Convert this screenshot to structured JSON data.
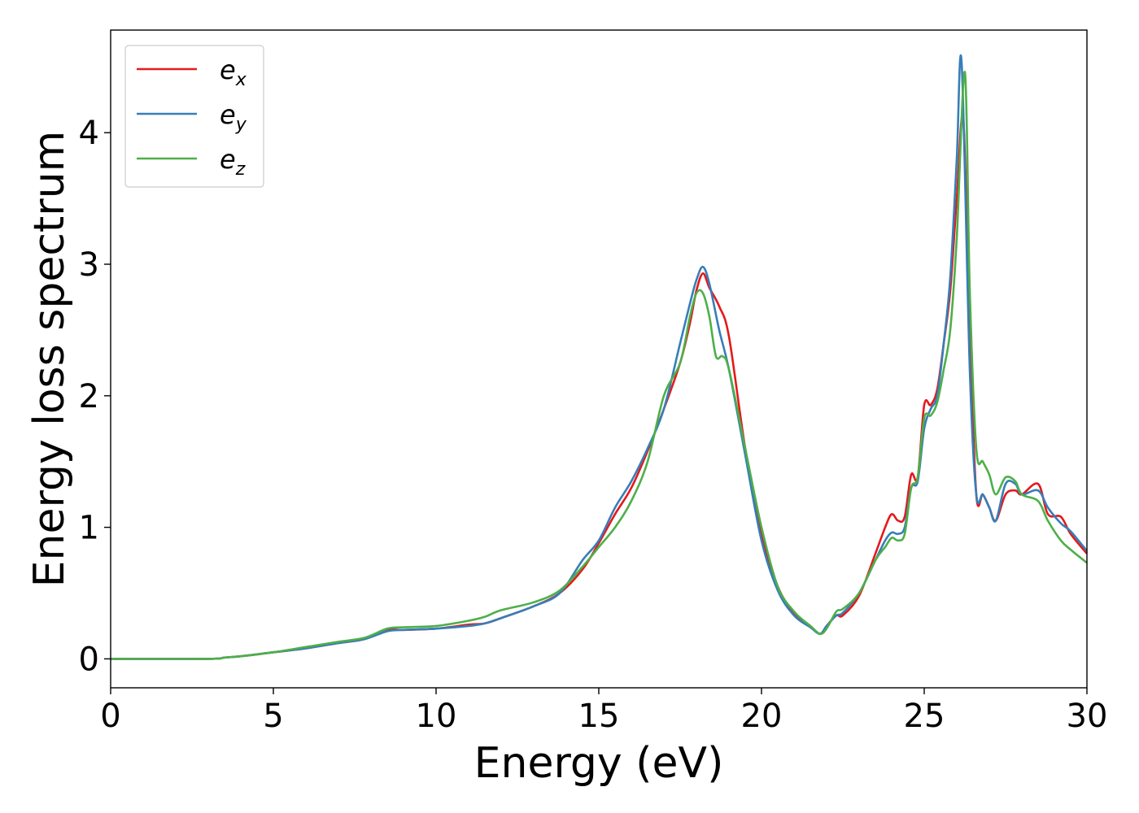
{
  "chart_data": {
    "type": "line",
    "xlabel": "Energy (eV)",
    "ylabel": "Energy loss spectrum",
    "xlim": [
      0,
      30
    ],
    "ylim": [
      -0.22,
      4.78
    ],
    "xticks": [
      0,
      5,
      10,
      15,
      20,
      25,
      30
    ],
    "yticks": [
      0,
      1,
      2,
      3,
      4
    ],
    "xtick_labels": [
      "0",
      "5",
      "10",
      "15",
      "20",
      "25",
      "30"
    ],
    "ytick_labels": [
      "0",
      "1",
      "2",
      "3",
      "4"
    ],
    "grid": false,
    "legend_position": "top-left",
    "series": [
      {
        "name": "e_x",
        "label_base": "e",
        "label_sub": "x",
        "color": "#e41a1c",
        "points": [
          [
            0,
            0
          ],
          [
            3,
            0
          ],
          [
            3.5,
            0.01
          ],
          [
            4,
            0.02
          ],
          [
            5,
            0.05
          ],
          [
            6,
            0.08
          ],
          [
            7,
            0.12
          ],
          [
            7.8,
            0.15
          ],
          [
            8.5,
            0.22
          ],
          [
            9,
            0.22
          ],
          [
            10,
            0.23
          ],
          [
            11,
            0.26
          ],
          [
            11.5,
            0.27
          ],
          [
            12,
            0.31
          ],
          [
            13,
            0.4
          ],
          [
            13.8,
            0.5
          ],
          [
            14.5,
            0.68
          ],
          [
            15,
            0.88
          ],
          [
            15.5,
            1.1
          ],
          [
            16,
            1.3
          ],
          [
            16.5,
            1.58
          ],
          [
            17,
            1.9
          ],
          [
            17.5,
            2.25
          ],
          [
            17.8,
            2.55
          ],
          [
            18,
            2.8
          ],
          [
            18.2,
            2.93
          ],
          [
            18.4,
            2.82
          ],
          [
            18.7,
            2.68
          ],
          [
            19,
            2.45
          ],
          [
            19.5,
            1.6
          ],
          [
            20,
            0.95
          ],
          [
            20.5,
            0.55
          ],
          [
            21,
            0.35
          ],
          [
            21.5,
            0.25
          ],
          [
            21.8,
            0.19
          ],
          [
            22,
            0.25
          ],
          [
            22.3,
            0.33
          ],
          [
            22.5,
            0.33
          ],
          [
            23,
            0.48
          ],
          [
            23.5,
            0.8
          ],
          [
            23.8,
            1.0
          ],
          [
            24,
            1.1
          ],
          [
            24.2,
            1.05
          ],
          [
            24.4,
            1.08
          ],
          [
            24.6,
            1.4
          ],
          [
            24.8,
            1.38
          ],
          [
            25,
            1.93
          ],
          [
            25.2,
            1.93
          ],
          [
            25.4,
            2.05
          ],
          [
            25.6,
            2.4
          ],
          [
            25.8,
            2.8
          ],
          [
            26,
            3.5
          ],
          [
            26.2,
            4.1
          ],
          [
            26.4,
            2.5
          ],
          [
            26.6,
            1.25
          ],
          [
            26.8,
            1.25
          ],
          [
            27,
            1.15
          ],
          [
            27.2,
            1.05
          ],
          [
            27.5,
            1.25
          ],
          [
            27.8,
            1.28
          ],
          [
            28,
            1.25
          ],
          [
            28.5,
            1.33
          ],
          [
            28.8,
            1.1
          ],
          [
            29.2,
            1.08
          ],
          [
            29.5,
            0.95
          ],
          [
            30,
            0.8
          ]
        ]
      },
      {
        "name": "e_y",
        "label_base": "e",
        "label_sub": "y",
        "color": "#377eb8",
        "points": [
          [
            0,
            0
          ],
          [
            3,
            0
          ],
          [
            3.5,
            0.01
          ],
          [
            4,
            0.02
          ],
          [
            5,
            0.05
          ],
          [
            6,
            0.08
          ],
          [
            7,
            0.12
          ],
          [
            7.8,
            0.15
          ],
          [
            8.5,
            0.21
          ],
          [
            9,
            0.22
          ],
          [
            10,
            0.23
          ],
          [
            11,
            0.25
          ],
          [
            11.5,
            0.27
          ],
          [
            12,
            0.31
          ],
          [
            13,
            0.4
          ],
          [
            13.8,
            0.5
          ],
          [
            14.5,
            0.75
          ],
          [
            15,
            0.9
          ],
          [
            15.5,
            1.15
          ],
          [
            16,
            1.35
          ],
          [
            16.5,
            1.6
          ],
          [
            17,
            1.9
          ],
          [
            17.5,
            2.4
          ],
          [
            17.8,
            2.7
          ],
          [
            18,
            2.88
          ],
          [
            18.2,
            2.98
          ],
          [
            18.4,
            2.85
          ],
          [
            18.7,
            2.5
          ],
          [
            19,
            2.2
          ],
          [
            19.5,
            1.55
          ],
          [
            20,
            0.9
          ],
          [
            20.5,
            0.52
          ],
          [
            21,
            0.33
          ],
          [
            21.5,
            0.24
          ],
          [
            21.8,
            0.19
          ],
          [
            22,
            0.25
          ],
          [
            22.3,
            0.33
          ],
          [
            22.5,
            0.35
          ],
          [
            23,
            0.5
          ],
          [
            23.5,
            0.75
          ],
          [
            23.8,
            0.9
          ],
          [
            24,
            0.96
          ],
          [
            24.2,
            0.95
          ],
          [
            24.4,
            1.0
          ],
          [
            24.6,
            1.3
          ],
          [
            24.8,
            1.35
          ],
          [
            25,
            1.75
          ],
          [
            25.2,
            1.9
          ],
          [
            25.4,
            2.0
          ],
          [
            25.6,
            2.4
          ],
          [
            25.8,
            2.9
          ],
          [
            26,
            3.8
          ],
          [
            26.15,
            4.53
          ],
          [
            26.4,
            2.2
          ],
          [
            26.6,
            1.25
          ],
          [
            26.8,
            1.25
          ],
          [
            27,
            1.15
          ],
          [
            27.2,
            1.05
          ],
          [
            27.5,
            1.33
          ],
          [
            27.8,
            1.33
          ],
          [
            28,
            1.25
          ],
          [
            28.5,
            1.28
          ],
          [
            28.8,
            1.15
          ],
          [
            29.2,
            1.03
          ],
          [
            29.5,
            0.97
          ],
          [
            30,
            0.82
          ]
        ]
      },
      {
        "name": "e_z",
        "label_base": "e",
        "label_sub": "z",
        "color": "#4daf4a",
        "points": [
          [
            0,
            0
          ],
          [
            3,
            0
          ],
          [
            3.5,
            0.01
          ],
          [
            4,
            0.02
          ],
          [
            5,
            0.05
          ],
          [
            6,
            0.09
          ],
          [
            7,
            0.13
          ],
          [
            7.8,
            0.16
          ],
          [
            8.5,
            0.23
          ],
          [
            9,
            0.24
          ],
          [
            10,
            0.25
          ],
          [
            11,
            0.29
          ],
          [
            11.5,
            0.32
          ],
          [
            12,
            0.37
          ],
          [
            13,
            0.43
          ],
          [
            13.8,
            0.52
          ],
          [
            14.5,
            0.7
          ],
          [
            15,
            0.85
          ],
          [
            15.5,
            1.0
          ],
          [
            16,
            1.2
          ],
          [
            16.5,
            1.5
          ],
          [
            17,
            2.0
          ],
          [
            17.5,
            2.25
          ],
          [
            17.8,
            2.6
          ],
          [
            18,
            2.78
          ],
          [
            18.2,
            2.78
          ],
          [
            18.4,
            2.6
          ],
          [
            18.6,
            2.3
          ],
          [
            18.8,
            2.3
          ],
          [
            19,
            2.2
          ],
          [
            19.5,
            1.6
          ],
          [
            20,
            1.0
          ],
          [
            20.5,
            0.55
          ],
          [
            21,
            0.36
          ],
          [
            21.5,
            0.25
          ],
          [
            21.8,
            0.19
          ],
          [
            22,
            0.23
          ],
          [
            22.3,
            0.36
          ],
          [
            22.5,
            0.38
          ],
          [
            23,
            0.5
          ],
          [
            23.5,
            0.75
          ],
          [
            23.8,
            0.85
          ],
          [
            24,
            0.92
          ],
          [
            24.2,
            0.9
          ],
          [
            24.4,
            0.95
          ],
          [
            24.6,
            1.3
          ],
          [
            24.8,
            1.38
          ],
          [
            25,
            1.83
          ],
          [
            25.2,
            1.85
          ],
          [
            25.4,
            1.95
          ],
          [
            25.6,
            2.2
          ],
          [
            25.8,
            2.5
          ],
          [
            26,
            3.2
          ],
          [
            26.25,
            4.46
          ],
          [
            26.4,
            2.8
          ],
          [
            26.6,
            1.6
          ],
          [
            26.8,
            1.5
          ],
          [
            27,
            1.4
          ],
          [
            27.2,
            1.25
          ],
          [
            27.5,
            1.38
          ],
          [
            27.8,
            1.35
          ],
          [
            28,
            1.25
          ],
          [
            28.5,
            1.2
          ],
          [
            28.8,
            1.05
          ],
          [
            29.2,
            0.9
          ],
          [
            29.5,
            0.83
          ],
          [
            30,
            0.73
          ]
        ]
      }
    ]
  }
}
